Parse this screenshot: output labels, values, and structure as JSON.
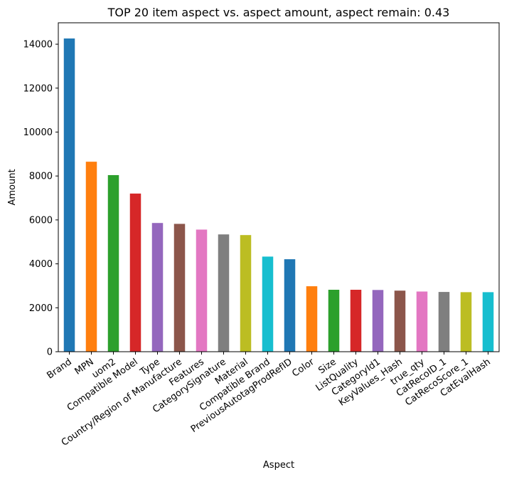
{
  "chart_data": {
    "type": "bar",
    "title": "TOP 20 item aspect vs. aspect amount, aspect remain: 0.43",
    "xlabel": "Aspect",
    "ylabel": "Amount",
    "ylim": [
      0,
      14975
    ],
    "yticks": [
      0,
      2000,
      4000,
      6000,
      8000,
      10000,
      12000,
      14000
    ],
    "grid": false,
    "legend": "none",
    "categories": [
      "Brand",
      "MPN",
      "uom2",
      "Compatible Model",
      "Type",
      "Country/Region of Manufacture",
      "Features",
      "CategorySignature",
      "Material",
      "Compatible Brand",
      "PreviousAutotagProdRefID",
      "Color",
      "Size",
      "ListQuality",
      "CategoryId1",
      "KeyValues_Hash",
      "true_qty",
      "CatRecoID_1",
      "CatRecoScore_1",
      "CatEvalHash"
    ],
    "values": [
      14260,
      8650,
      8040,
      7200,
      5860,
      5820,
      5560,
      5340,
      5310,
      4330,
      4210,
      2980,
      2820,
      2820,
      2810,
      2780,
      2740,
      2720,
      2710,
      2710
    ],
    "colors": [
      "#1f77b4",
      "#ff7f0e",
      "#2ca02c",
      "#d62728",
      "#9467bd",
      "#8c564b",
      "#e377c2",
      "#7f7f7f",
      "#bcbd22",
      "#17becf"
    ]
  }
}
